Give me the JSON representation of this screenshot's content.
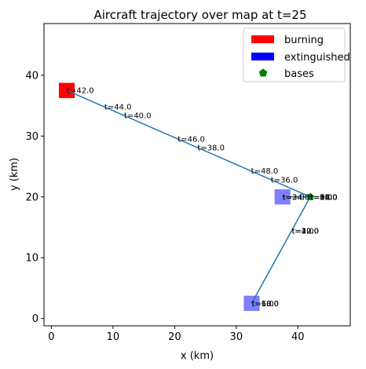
{
  "chart_data": {
    "type": "scatter",
    "title": "Aircraft trajectory over map at  t=25",
    "xlabel": "x (km)",
    "ylabel": "y (km)",
    "xlim": [
      -1.2,
      48.5
    ],
    "ylim": [
      -1.2,
      48.5
    ],
    "xticks": [
      0,
      10,
      20,
      30,
      40
    ],
    "yticks": [
      0,
      10,
      20,
      30,
      40
    ],
    "grid": false,
    "legend_position": "top-right",
    "legend": [
      {
        "label": "burning",
        "marker": "square",
        "color": "#ff0000"
      },
      {
        "label": "extinguished",
        "marker": "square",
        "color": "#0000ff"
      },
      {
        "label": "bases",
        "marker": "pentagon",
        "color": "#008000"
      }
    ],
    "fires_burning": [
      {
        "x": 2.5,
        "y": 37.5
      }
    ],
    "fires_extinguished": [
      {
        "x": 37.5,
        "y": 20.0
      },
      {
        "x": 32.5,
        "y": 2.5
      }
    ],
    "bases": [
      {
        "x": 42.0,
        "y": 20.0
      }
    ],
    "trajectory": {
      "color": "#1f77b4",
      "points": [
        {
          "x": 42.0,
          "y": 20.0
        },
        {
          "x": 32.5,
          "y": 2.5
        },
        {
          "x": 42.0,
          "y": 20.0
        },
        {
          "x": 37.5,
          "y": 20.0
        },
        {
          "x": 42.0,
          "y": 20.0
        },
        {
          "x": 2.5,
          "y": 37.5
        },
        {
          "x": 42.0,
          "y": 20.0
        }
      ]
    },
    "time_labels": [
      {
        "text": "t=42.0",
        "x": 2.5,
        "y": 37.5
      },
      {
        "text": "t=44.0",
        "x": 8.6,
        "y": 34.8
      },
      {
        "text": "t=40.0",
        "x": 11.8,
        "y": 33.4
      },
      {
        "text": "t=46.0",
        "x": 20.5,
        "y": 29.5
      },
      {
        "text": "t=38.0",
        "x": 23.7,
        "y": 28.1
      },
      {
        "text": "t=48.0",
        "x": 32.4,
        "y": 24.3
      },
      {
        "text": "t=36.0",
        "x": 35.6,
        "y": 22.8
      },
      {
        "text": "t=2.0",
        "x": 37.5,
        "y": 20.0
      },
      {
        "text": "t=34.0",
        "x": 37.5,
        "y": 20.0
      },
      {
        "text": "t=0.0",
        "x": 42.0,
        "y": 20.0
      },
      {
        "text": "t=8.0",
        "x": 42.0,
        "y": 20.0
      },
      {
        "text": "t=16.0",
        "x": 42.0,
        "y": 20.0
      },
      {
        "text": "t=24.0",
        "x": 42.0,
        "y": 20.0
      },
      {
        "text": "t=32.0",
        "x": 42.0,
        "y": 20.0
      },
      {
        "text": "t=50.0",
        "x": 42.0,
        "y": 20.0
      },
      {
        "text": "t=4.0",
        "x": 39.0,
        "y": 14.4
      },
      {
        "text": "t=12.0",
        "x": 39.0,
        "y": 14.4
      },
      {
        "text": "t=20.0",
        "x": 39.0,
        "y": 14.4
      },
      {
        "text": "t=6.0",
        "x": 32.5,
        "y": 2.5
      },
      {
        "text": "t=10.0",
        "x": 32.5,
        "y": 2.5
      },
      {
        "text": "t=18.0",
        "x": 32.5,
        "y": 2.5
      }
    ]
  }
}
